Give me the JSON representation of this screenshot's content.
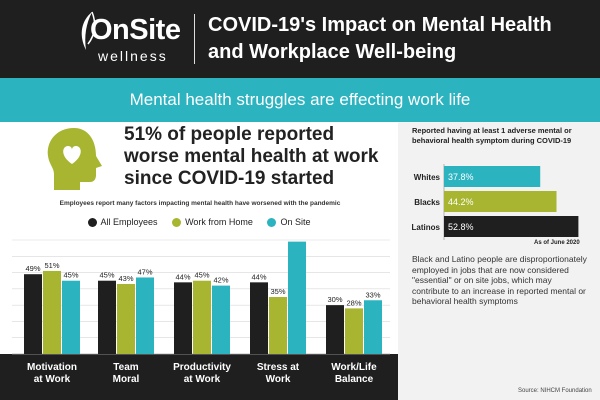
{
  "header": {
    "logo_main": "OnSite",
    "logo_sub": "wellness",
    "title_line1": "COVID-19's Impact on Mental Health",
    "title_line2": "and Workplace Well-being"
  },
  "banner": {
    "text": "Mental health struggles are effecting work life"
  },
  "headline": {
    "line1": "51% of people reported",
    "line2": "worse mental health at work",
    "line3": "since COVID-19 started"
  },
  "side": {
    "hbar_title": "Reported having at least 1 adverse mental or behavioral health symptom during COVID-19",
    "as_of": "As of June 2020",
    "note": "Black and Latino people are disproportionately employed in jobs that are now considered \"essential\" or on site jobs, which may contribute to an increase in reported mental or behavioral health symptoms",
    "source": "Source: NIHCM Foundation"
  },
  "colors": {
    "dark": "#1f1f1f",
    "olive": "#a8b530",
    "teal": "#2bb3c0"
  },
  "chart_data": [
    {
      "type": "bar",
      "title": "Employees report many factors impacting mental health have worsened with the pandemic",
      "categories": [
        "Motivation at Work",
        "Team Moral",
        "Productivity at Work",
        "Stress at Work",
        "Work/Life Balance"
      ],
      "category_labels": [
        [
          "Motivation",
          "at Work"
        ],
        [
          "Team",
          "Moral"
        ],
        [
          "Productivity",
          "at Work"
        ],
        [
          "Stress at",
          "Work"
        ],
        [
          "Work/Life",
          "Balance"
        ]
      ],
      "series": [
        {
          "name": "All Employees",
          "color": "#1f1f1f",
          "values": [
            49,
            45,
            44,
            44,
            30
          ],
          "labels": [
            "49%",
            "45%",
            "44%",
            "44%",
            "30%"
          ]
        },
        {
          "name": "Work from Home",
          "color": "#a8b530",
          "values": [
            51,
            43,
            45,
            35,
            28
          ],
          "labels": [
            "51%",
            "43%",
            "45%",
            "35%",
            "28%"
          ]
        },
        {
          "name": "On Site",
          "color": "#2bb3c0",
          "values": [
            45,
            47,
            42,
            69,
            33
          ],
          "labels": [
            "45%",
            "47%",
            "42%",
            "",
            "33%"
          ]
        }
      ],
      "ylim": [
        0,
        70
      ],
      "grid": true,
      "legend": "top"
    },
    {
      "type": "bar",
      "orientation": "horizontal",
      "categories": [
        "Whites",
        "Blacks",
        "Latinos"
      ],
      "values": [
        37.8,
        44.2,
        52.8
      ],
      "labels": [
        "37.8%",
        "44.2%",
        "52.8%"
      ],
      "colors": [
        "#2bb3c0",
        "#a8b530",
        "#1f1f1f"
      ]
    }
  ]
}
